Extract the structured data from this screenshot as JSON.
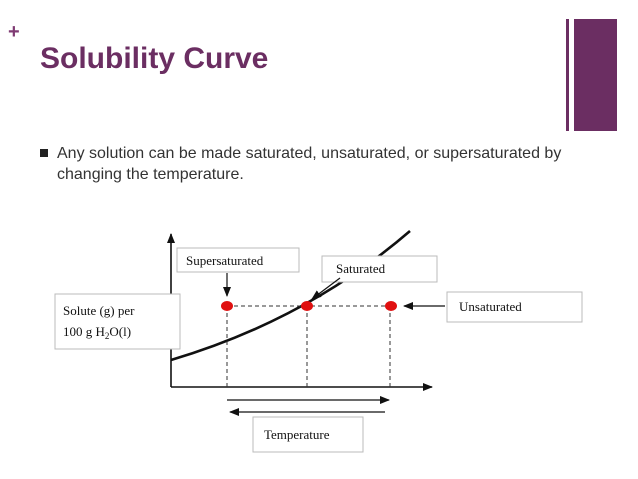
{
  "slide": {
    "plus_mark": "+",
    "title": "Solubility Curve",
    "bullet": "Any solution can be made saturated, unsaturated, or supersaturated by changing the temperature.",
    "accent_color": "#6b2e62"
  },
  "diagram": {
    "y_axis_label_line1": "Solute (g) per",
    "y_axis_label_line2_prefix": "100 g H",
    "y_axis_label_subscript": "2",
    "y_axis_label_line2_suffix": "O(l)",
    "x_axis_label": "Temperature",
    "label_supersaturated": "Supersaturated",
    "label_saturated": "Saturated",
    "label_unsaturated": "Unsaturated",
    "point_color": "#e01010"
  }
}
